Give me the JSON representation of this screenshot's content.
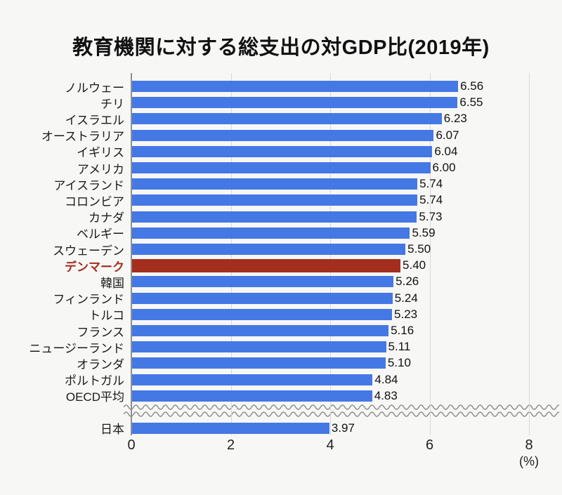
{
  "title": "教育機関に対する総支出の対GDP比(2019年)",
  "chart_data": {
    "type": "bar",
    "orientation": "horizontal",
    "title": "教育機関に対する総支出の対GDP比(2019年)",
    "unit_label": "(%)",
    "x_ticks": [
      "0",
      "2",
      "4",
      "6",
      "8"
    ],
    "xlim": [
      0,
      8
    ],
    "grid": true,
    "axis_break_before_last_bar": true,
    "bars": [
      {
        "label": "ノルウェー",
        "value": 6.56,
        "value_label": "6.56"
      },
      {
        "label": "チリ",
        "value": 6.55,
        "value_label": "6.55"
      },
      {
        "label": "イスラエル",
        "value": 6.23,
        "value_label": "6.23"
      },
      {
        "label": "オーストラリア",
        "value": 6.07,
        "value_label": "6.07"
      },
      {
        "label": "イギリス",
        "value": 6.04,
        "value_label": "6.04"
      },
      {
        "label": "アメリカ",
        "value": 6.0,
        "value_label": "6.00"
      },
      {
        "label": "アイスランド",
        "value": 5.74,
        "value_label": "5.74"
      },
      {
        "label": "コロンビア",
        "value": 5.74,
        "value_label": "5.74"
      },
      {
        "label": "カナダ",
        "value": 5.73,
        "value_label": "5.73"
      },
      {
        "label": "ベルギー",
        "value": 5.59,
        "value_label": "5.59"
      },
      {
        "label": "スウェーデン",
        "value": 5.5,
        "value_label": "5.50"
      },
      {
        "label": "デンマーク",
        "value": 5.4,
        "value_label": "5.40",
        "highlight": true
      },
      {
        "label": "韓国",
        "value": 5.26,
        "value_label": "5.26"
      },
      {
        "label": "フィンランド",
        "value": 5.24,
        "value_label": "5.24"
      },
      {
        "label": "トルコ",
        "value": 5.23,
        "value_label": "5.23"
      },
      {
        "label": "フランス",
        "value": 5.16,
        "value_label": "5.16"
      },
      {
        "label": "ニュージーランド",
        "value": 5.11,
        "value_label": "5.11"
      },
      {
        "label": "オランダ",
        "value": 5.1,
        "value_label": "5.10"
      },
      {
        "label": "ポルトガル",
        "value": 4.84,
        "value_label": "4.84"
      },
      {
        "label": "OECD平均",
        "value": 4.83,
        "value_label": "4.83"
      },
      {
        "label": "日本",
        "value": 3.97,
        "value_label": "3.97",
        "after_break": true
      }
    ],
    "colors": {
      "bar": "#4478e4",
      "highlight": "#a42e1e",
      "grid": "#d8d8d6",
      "axis": "#8f8f8f",
      "wave": "#8a8a8a",
      "background": "#f7f7f6",
      "text": "#1a1a1a"
    }
  }
}
